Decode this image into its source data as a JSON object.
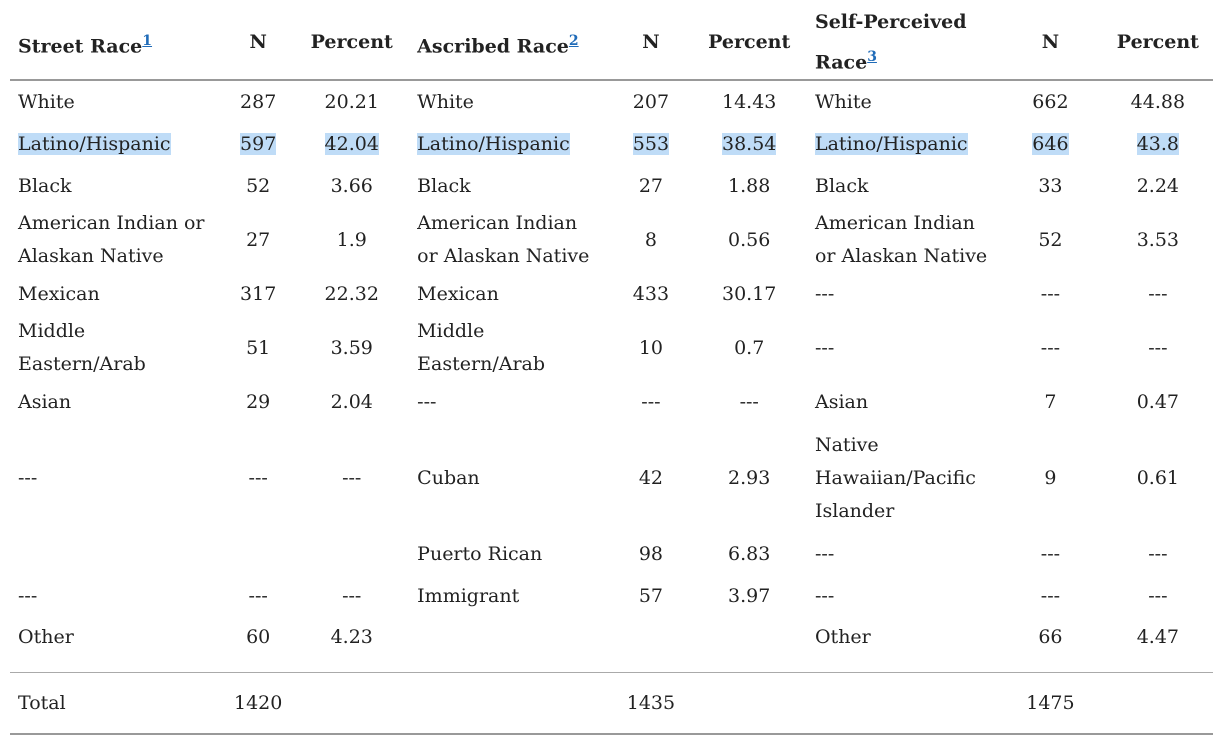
{
  "headers": [
    {
      "label": "Street Race",
      "note": "1"
    },
    {
      "label": "N"
    },
    {
      "label": "Percent"
    },
    {
      "label": "Ascribed Race",
      "note": "2"
    },
    {
      "label": "N"
    },
    {
      "label": "Percent"
    },
    {
      "label": "Self-Perceived Race",
      "note": "3"
    },
    {
      "label": "N"
    },
    {
      "label": "Percent"
    }
  ],
  "rows": [
    [
      "White",
      "287",
      "20.21",
      "White",
      "207",
      "14.43",
      "White",
      "662",
      "44.88"
    ],
    [
      "Latino/Hispanic",
      "597",
      "42.04",
      "Latino/Hispanic",
      "553",
      "38.54",
      "Latino/Hispanic",
      "646",
      "43.8"
    ],
    [
      "Black",
      "52",
      "3.66",
      "Black",
      "27",
      "1.88",
      "Black",
      "33",
      "2.24"
    ],
    [
      "American Indian or Alaskan Native",
      "27",
      "1.9",
      "American Indian or Alaskan Native",
      "8",
      "0.56",
      "American Indian or Alaskan Native",
      "52",
      "3.53"
    ],
    [
      "Mexican",
      "317",
      "22.32",
      "Mexican",
      "433",
      "30.17",
      "---",
      "---",
      "---"
    ],
    [
      "Middle Eastern/Arab",
      "51",
      "3.59",
      "Middle Eastern/Arab",
      "10",
      "0.7",
      "---",
      "---",
      "---"
    ],
    [
      "Asian",
      "29",
      "2.04",
      "---",
      "---",
      "---",
      "Asian",
      "7",
      "0.47"
    ],
    [
      "---",
      "---",
      "---",
      "Cuban",
      "42",
      "2.93",
      "Native Hawaiian/Pacific Islander",
      "9",
      "0.61"
    ],
    [
      "",
      "",
      "",
      "Puerto Rican",
      "98",
      "6.83",
      "---",
      "---",
      "---"
    ],
    [
      "---",
      "---",
      "---",
      "Immigrant",
      "57",
      "3.97",
      "---",
      "---",
      "---"
    ],
    [
      "Other",
      "60",
      "4.23",
      "",
      "",
      "",
      "Other",
      "66",
      "4.47"
    ]
  ],
  "total": [
    "Total",
    "1420",
    "",
    "",
    "1435",
    "",
    "",
    "1475",
    ""
  ],
  "colors": {
    "highlight": "#bfdcf7",
    "link": "#1f6bb8"
  }
}
